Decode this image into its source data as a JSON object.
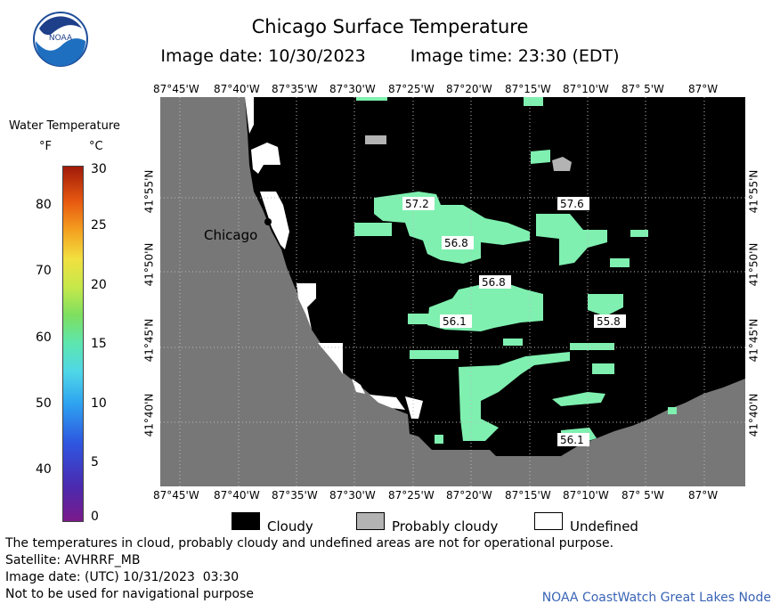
{
  "header": {
    "title": "Chicago Surface Temperature",
    "image_date": "Image date: 10/30/2023",
    "image_time": "Image time: 23:30 (EDT)"
  },
  "logo": {
    "text": "NOAA"
  },
  "legend": {
    "title": "Water Temperature",
    "unit_f": "°F",
    "unit_c": "°C",
    "f_ticks": [
      "80",
      "70",
      "60",
      "50",
      "40"
    ],
    "c_ticks": [
      "30",
      "25",
      "20",
      "15",
      "10",
      "5",
      "0"
    ]
  },
  "map": {
    "lon_labels": [
      "87°45'W",
      "87°40'W",
      "87°35'W",
      "87°30'W",
      "87°25'W",
      "87°20'W",
      "87°15'W",
      "87°10'W",
      "87° 5'W",
      "87°W"
    ],
    "lat_labels": [
      "41°55'N",
      "41°50'N",
      "41°45'N",
      "41°40'N"
    ],
    "city": "Chicago",
    "temp_labels": [
      "57.2",
      "57.6",
      "56.8",
      "56.8",
      "56.1",
      "55.8",
      "56.1"
    ],
    "colors": {
      "land": "#777777",
      "cloudy": "#000000",
      "water": "#7ff0b0",
      "probably_cloudy": "#b3b3b3",
      "undefined": "#ffffff"
    }
  },
  "cloud_legend": {
    "cloudy": "Cloudy",
    "probably_cloudy": "Probably cloudy",
    "undefined": "Undefined"
  },
  "notes": {
    "line1": "The temperatures in cloud, probably cloudy and undefined areas are not for operational purpose.",
    "line2": "Satellite: AVHRRF_MB",
    "line3": "Image date: (UTC) 10/31/2023  03:30",
    "line4": "Not to be used for navigational purpose"
  },
  "credit": "NOAA CoastWatch Great Lakes Node"
}
